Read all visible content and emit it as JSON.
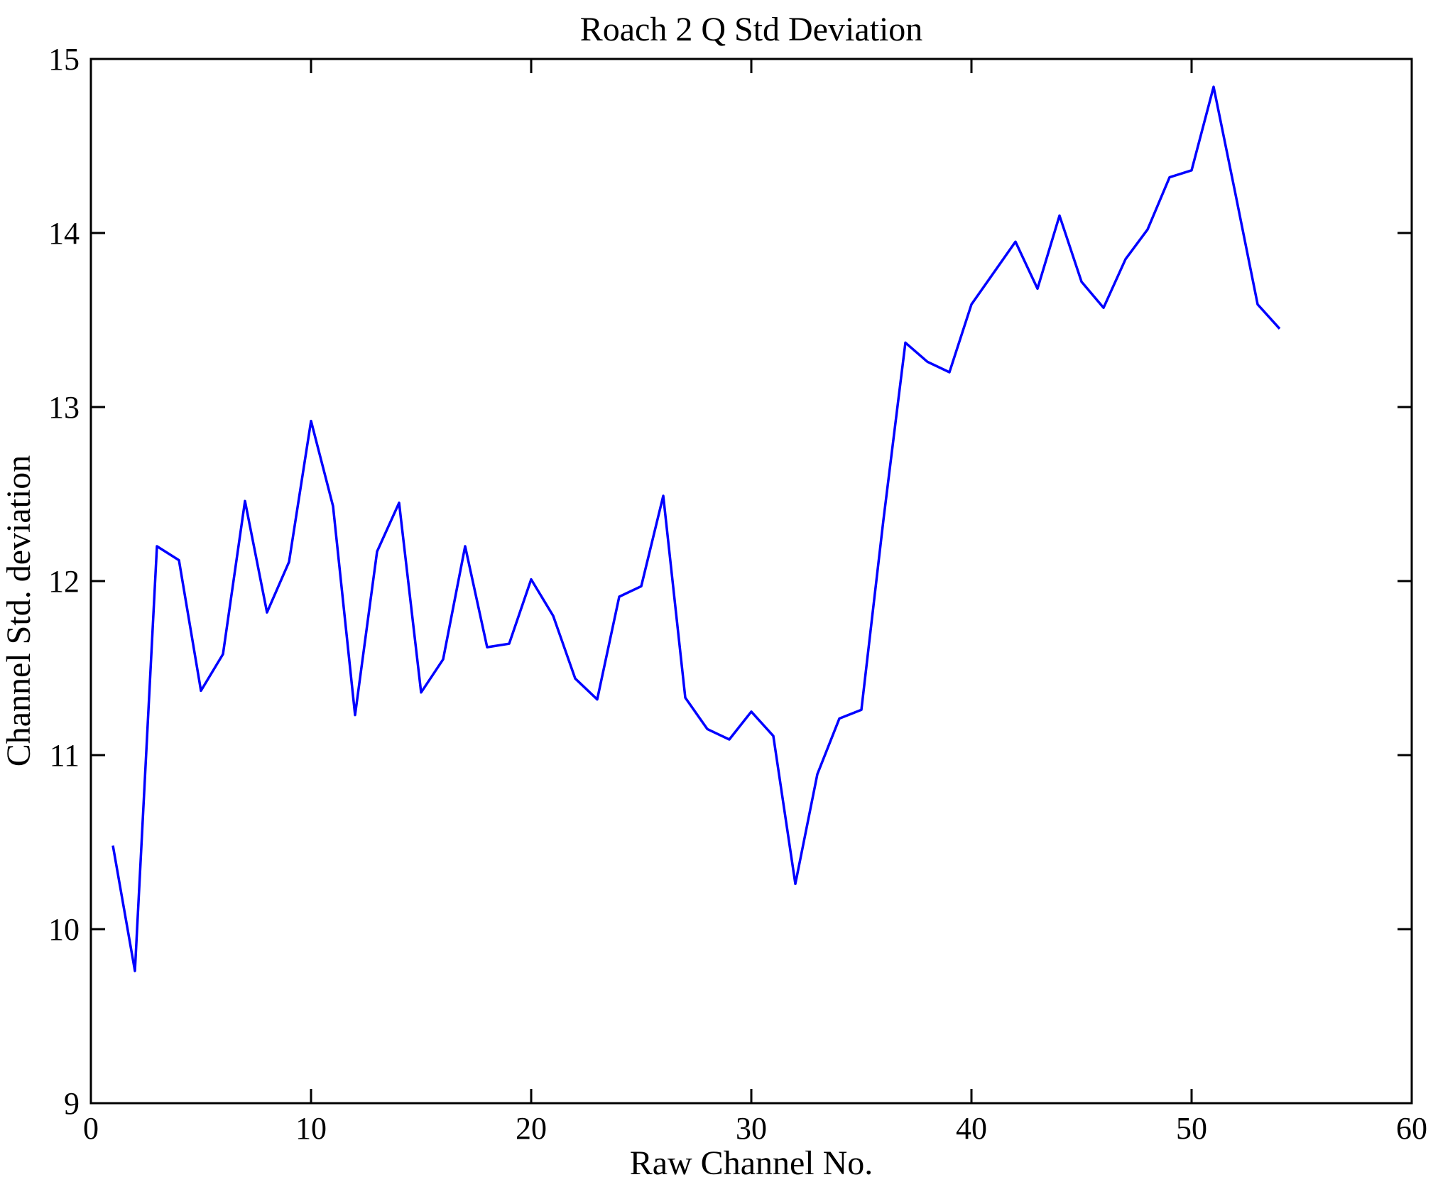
{
  "title": "Roach 2 Q Std Deviation",
  "chart_data": {
    "type": "line",
    "title": "Roach 2 Q Std Deviation",
    "xlabel": "Raw Channel No.",
    "ylabel": "Channel Std. deviation",
    "xlim": [
      0,
      60
    ],
    "ylim": [
      9,
      15
    ],
    "x_ticks": [
      0,
      10,
      20,
      30,
      40,
      50,
      60
    ],
    "y_ticks": [
      9,
      10,
      11,
      12,
      13,
      14,
      15
    ],
    "grid": false,
    "legend_position": "none",
    "line_color": "#0000ff",
    "axis_color": "#000000",
    "series": [
      {
        "name": "channel-std-deviation",
        "x": [
          1,
          2,
          3,
          4,
          5,
          6,
          7,
          8,
          9,
          10,
          11,
          12,
          13,
          14,
          15,
          16,
          17,
          18,
          19,
          20,
          21,
          22,
          23,
          24,
          25,
          26,
          27,
          28,
          29,
          30,
          31,
          32,
          33,
          34,
          35,
          36,
          37,
          38,
          39,
          40,
          41,
          42,
          43,
          44,
          45,
          46,
          47,
          48,
          49,
          50,
          51,
          52,
          53,
          54
        ],
        "y": [
          10.48,
          9.76,
          12.2,
          12.12,
          11.37,
          11.58,
          12.46,
          11.82,
          12.11,
          12.92,
          12.43,
          11.23,
          12.17,
          12.45,
          11.36,
          11.55,
          12.2,
          11.62,
          11.64,
          12.01,
          11.8,
          11.44,
          11.32,
          11.91,
          11.97,
          12.49,
          11.33,
          11.15,
          11.09,
          11.25,
          11.11,
          10.26,
          10.89,
          11.21,
          11.26,
          12.35,
          13.37,
          13.26,
          13.2,
          13.59,
          13.77,
          13.95,
          13.68,
          14.1,
          13.72,
          13.57,
          13.85,
          14.02,
          14.32,
          14.36,
          14.84,
          14.22,
          13.59,
          13.45
        ]
      }
    ]
  }
}
